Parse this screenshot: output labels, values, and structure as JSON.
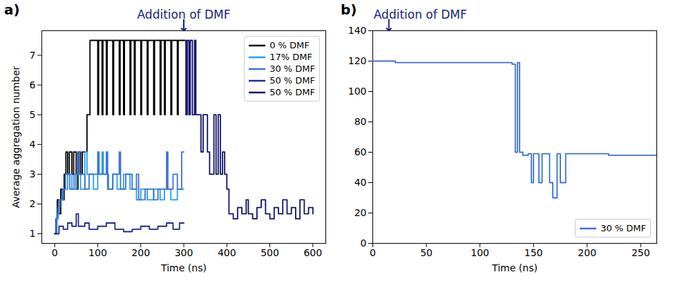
{
  "chart_data": [
    {
      "type": "line",
      "panel_label": "a)",
      "x_label": "Time (ns)",
      "y_label": "Average aggregation number",
      "xlim": [
        -30,
        630
      ],
      "xticks": [
        0,
        100,
        200,
        300,
        400,
        500,
        600
      ],
      "ylim": [
        0.675,
        7.825
      ],
      "yticks": [
        1,
        2,
        3,
        4,
        5,
        6,
        7
      ],
      "grid": false,
      "legend": "upper right",
      "annotations": [
        {
          "text": "Addition of DMF",
          "x": 300
        }
      ],
      "series": [
        {
          "name": "0 % DMF",
          "color": "#000000",
          "x": [
            0,
            3,
            6,
            10,
            14,
            18,
            22,
            26,
            30,
            34,
            40,
            44,
            50,
            54,
            60,
            64,
            75,
            82,
            100,
            102,
            110,
            112,
            120,
            122,
            135,
            137,
            150,
            152,
            160,
            162,
            175,
            177,
            185,
            187,
            200,
            202,
            215,
            217,
            230,
            232,
            245,
            247,
            255,
            257,
            270,
            272,
            285,
            287,
            300
          ],
          "values": [
            1,
            1.5,
            2.14,
            1.67,
            2.5,
            2.14,
            3,
            3.75,
            3,
            3.75,
            3,
            3.75,
            2.5,
            3.75,
            3,
            3.75,
            5,
            7.5,
            5,
            7.5,
            5,
            7.5,
            5,
            7.5,
            5,
            7.5,
            5,
            7.5,
            5,
            7.5,
            5,
            7.5,
            5,
            7.5,
            5,
            7.5,
            5,
            7.5,
            5,
            7.5,
            5,
            7.5,
            5,
            7.5,
            5,
            7.5,
            5,
            7.5,
            7.5
          ]
        },
        {
          "name": "17% DMF",
          "color": "#1ea0f0",
          "x": [
            0,
            4,
            8,
            12,
            20,
            30,
            40,
            50,
            60,
            70,
            75,
            90,
            100,
            110,
            113,
            125,
            135,
            145,
            160,
            175,
            190,
            200,
            215,
            230,
            245,
            255,
            270,
            285,
            300
          ],
          "values": [
            1,
            1.5,
            1.88,
            2.14,
            2.5,
            3,
            2.5,
            3,
            2.5,
            3.75,
            3,
            2.5,
            3,
            3.75,
            3,
            2.5,
            3,
            2.5,
            3,
            2.5,
            2.14,
            2.5,
            2.14,
            2.5,
            2.14,
            2.5,
            2.14,
            2.5,
            2.5
          ]
        },
        {
          "name": "30 % DMF",
          "color": "#3b6fd6",
          "x": [
            0,
            5,
            10,
            18,
            25,
            35,
            45,
            55,
            58,
            70,
            80,
            100,
            103,
            120,
            123,
            135,
            150,
            153,
            165,
            180,
            190,
            195,
            210,
            230,
            240,
            260,
            263,
            275,
            285,
            295,
            300
          ],
          "values": [
            1,
            1.67,
            2.14,
            2.5,
            3,
            2.5,
            3,
            3.75,
            3,
            2.5,
            3,
            3.75,
            3,
            3.75,
            2.5,
            3,
            3.75,
            2.5,
            3,
            2.5,
            3,
            2.14,
            2.5,
            2.14,
            2.5,
            3.75,
            2.5,
            3,
            2.5,
            3.75,
            3.75
          ]
        },
        {
          "name": "50 % DMF",
          "color": "#1f2a8c",
          "x": [
            0,
            10,
            20,
            30,
            40,
            50,
            55,
            70,
            80,
            100,
            120,
            140,
            160,
            180,
            200,
            220,
            240,
            260,
            275,
            290,
            300
          ],
          "values": [
            1,
            1.25,
            1.15,
            1.36,
            1.25,
            1.67,
            1.25,
            1.36,
            1.15,
            1.25,
            1.36,
            1.15,
            1.07,
            1.15,
            1.25,
            1.15,
            1.25,
            1.36,
            1.15,
            1.36,
            1.36
          ]
        },
        {
          "name": "50 % DMF",
          "color": "#10126b",
          "x": [
            300,
            305,
            308,
            312,
            315,
            320,
            325,
            328,
            340,
            345,
            355,
            360,
            370,
            375,
            380,
            385,
            390,
            395,
            400,
            405,
            415,
            425,
            435,
            445,
            450,
            460,
            470,
            480,
            490,
            500,
            510,
            520,
            530,
            540,
            550,
            560,
            570,
            580,
            590,
            600
          ],
          "values": [
            7.5,
            5,
            7.5,
            5,
            7.5,
            5,
            7.5,
            5,
            3.75,
            5,
            3.75,
            3,
            5,
            3,
            5,
            3,
            3.75,
            3,
            2.5,
            1.67,
            1.5,
            1.88,
            1.67,
            2.14,
            1.67,
            1.5,
            1.88,
            2.14,
            1.67,
            1.5,
            1.88,
            1.67,
            2.14,
            1.67,
            1.88,
            1.5,
            2.14,
            1.67,
            1.88,
            1.67
          ]
        }
      ]
    },
    {
      "type": "line",
      "panel_label": "b)",
      "x_label": "Time (ns)",
      "xlim": [
        0,
        265
      ],
      "xticks": [
        0,
        50,
        100,
        150,
        200,
        250
      ],
      "ylim": [
        0,
        140
      ],
      "yticks": [
        0,
        20,
        40,
        60,
        80,
        100,
        120,
        140
      ],
      "grid": false,
      "legend": "lower right",
      "annotations": [
        {
          "text": "Addition of DMF",
          "x": 15
        }
      ],
      "series": [
        {
          "name": "30 % DMF",
          "color": "#3a6fd8",
          "x": [
            0,
            20,
            21,
            40,
            60,
            80,
            100,
            120,
            130,
            133,
            135,
            137,
            140,
            145,
            148,
            150,
            155,
            158,
            165,
            168,
            172,
            175,
            180,
            185,
            200,
            220,
            240,
            265
          ],
          "values": [
            120,
            120,
            119,
            119,
            119,
            119,
            119,
            119,
            118,
            60,
            119,
            60,
            58,
            59,
            40,
            59,
            40,
            59,
            40,
            30,
            59,
            40,
            59,
            59,
            59,
            58,
            58,
            58
          ]
        }
      ]
    }
  ]
}
